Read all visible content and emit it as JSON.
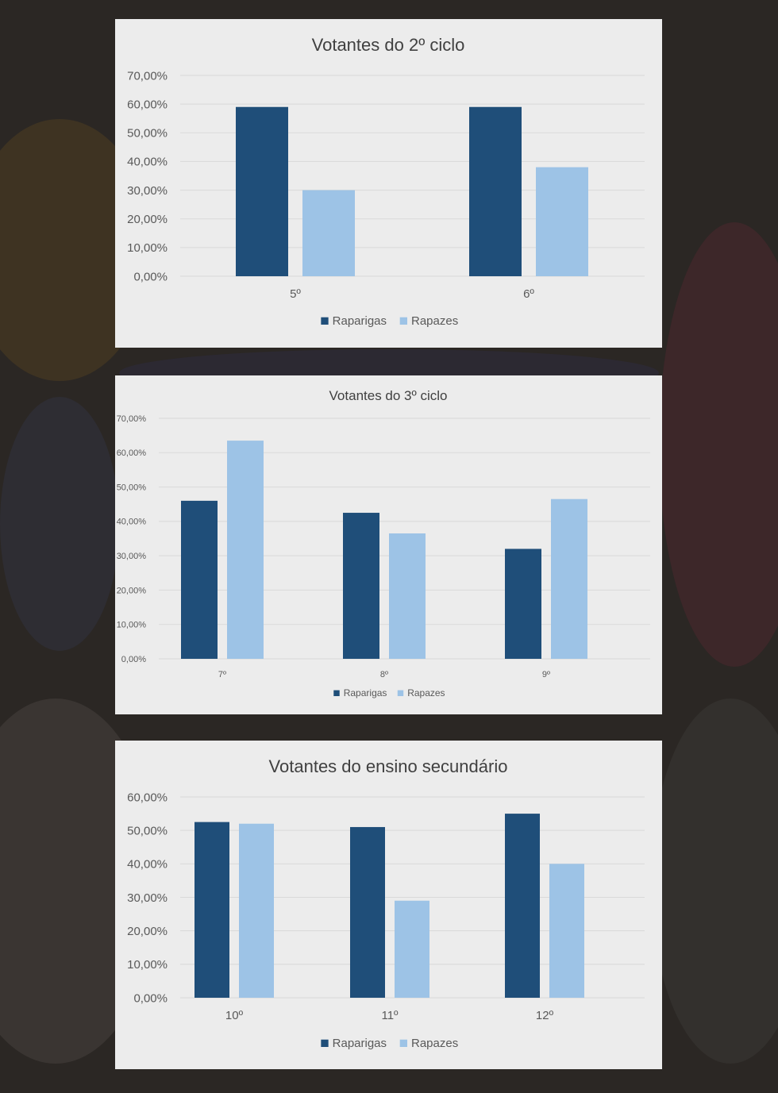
{
  "colors": {
    "raparigas": "#1f4e79",
    "rapazes": "#9dc3e6",
    "grid": "#d9d9d9",
    "panel_bg": "#ececec"
  },
  "chart_data": [
    {
      "type": "bar",
      "title": "Votantes do 2º ciclo",
      "xlabel": "",
      "ylabel": "",
      "categories": [
        "5º",
        "6º"
      ],
      "yticks": [
        "0,00%",
        "10,00%",
        "20,00%",
        "30,00%",
        "40,00%",
        "50,00%",
        "60,00%",
        "70,00%"
      ],
      "ylim": [
        0,
        70
      ],
      "grid": true,
      "legend_position": "bottom",
      "series": [
        {
          "name": "Raparigas",
          "values": [
            59,
            59
          ]
        },
        {
          "name": "Rapazes",
          "values": [
            30,
            38
          ]
        }
      ]
    },
    {
      "type": "bar",
      "title": "Votantes do 3º ciclo",
      "xlabel": "",
      "ylabel": "",
      "categories": [
        "7º",
        "8º",
        "9º"
      ],
      "yticks": [
        "0,00%",
        "10,00%",
        "20,00%",
        "30,00%",
        "40,00%",
        "50,00%",
        "60,00%",
        "70,00%"
      ],
      "ylim": [
        0,
        70
      ],
      "grid": true,
      "legend_position": "bottom",
      "series": [
        {
          "name": "Raparigas",
          "values": [
            46,
            42.5,
            32
          ]
        },
        {
          "name": "Rapazes",
          "values": [
            63.5,
            36.5,
            46.5
          ]
        }
      ]
    },
    {
      "type": "bar",
      "title": "Votantes do ensino secundário",
      "xlabel": "",
      "ylabel": "",
      "categories": [
        "10º",
        "11º",
        "12º"
      ],
      "yticks": [
        "0,00%",
        "10,00%",
        "20,00%",
        "30,00%",
        "40,00%",
        "50,00%",
        "60,00%"
      ],
      "ylim": [
        0,
        60
      ],
      "grid": true,
      "legend_position": "bottom",
      "series": [
        {
          "name": "Raparigas",
          "values": [
            52.5,
            51,
            55
          ]
        },
        {
          "name": "Rapazes",
          "values": [
            52,
            29,
            40
          ]
        }
      ]
    }
  ]
}
